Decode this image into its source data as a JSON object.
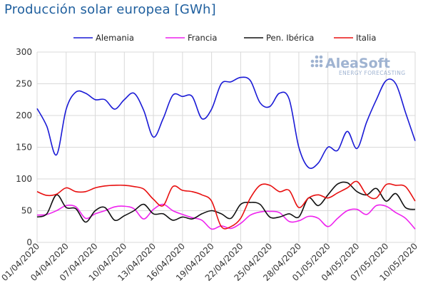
{
  "title": "Producción solar europea [GWh]",
  "watermark": {
    "brand": "AleaSoft",
    "tagline": "ENERGY FORECASTING"
  },
  "colors": {
    "title": "#1f5f9e",
    "grid": "#d9d9d9",
    "watermark": "#9fb3d1"
  },
  "chart_data": {
    "type": "line",
    "title": "Producción solar europea [GWh]",
    "xlabel": "",
    "ylabel": "",
    "ylim": [
      0,
      300
    ],
    "yticks": [
      0,
      50,
      100,
      150,
      200,
      250,
      300
    ],
    "grid": true,
    "legend_position": "top",
    "x": [
      "01/04/2020",
      "02/04/2020",
      "03/04/2020",
      "04/04/2020",
      "05/04/2020",
      "06/04/2020",
      "07/04/2020",
      "08/04/2020",
      "09/04/2020",
      "10/04/2020",
      "11/04/2020",
      "12/04/2020",
      "13/04/2020",
      "14/04/2020",
      "15/04/2020",
      "16/04/2020",
      "17/04/2020",
      "18/04/2020",
      "19/04/2020",
      "20/04/2020",
      "21/04/2020",
      "22/04/2020",
      "23/04/2020",
      "24/04/2020",
      "25/04/2020",
      "26/04/2020",
      "27/04/2020",
      "28/04/2020",
      "29/04/2020",
      "30/04/2020",
      "01/05/2020",
      "02/05/2020",
      "03/05/2020",
      "04/05/2020",
      "05/05/2020",
      "06/05/2020",
      "07/05/2020",
      "08/05/2020",
      "09/05/2020",
      "10/05/2020"
    ],
    "x_tick_labels": [
      "01/04/2020",
      "04/04/2020",
      "07/04/2020",
      "10/04/2020",
      "13/04/2020",
      "16/04/2020",
      "19/04/2020",
      "22/04/2020",
      "25/04/2020",
      "28/04/2020",
      "01/05/2020",
      "04/05/2020",
      "07/05/2020",
      "10/05/2020"
    ],
    "series": [
      {
        "name": "Alemania",
        "color": "#1a1ad6",
        "values": [
          211,
          183,
          138,
          210,
          237,
          235,
          225,
          225,
          210,
          225,
          235,
          208,
          166,
          195,
          232,
          230,
          230,
          195,
          210,
          250,
          253,
          260,
          255,
          220,
          214,
          235,
          226,
          150,
          118,
          125,
          150,
          145,
          175,
          148,
          190,
          225,
          255,
          250,
          205,
          160
        ]
      },
      {
        "name": "Francia",
        "color": "#ee22ee",
        "values": [
          43,
          44,
          50,
          58,
          56,
          38,
          45,
          50,
          56,
          57,
          53,
          37,
          52,
          60,
          50,
          44,
          39,
          35,
          21,
          26,
          22,
          30,
          43,
          48,
          49,
          47,
          33,
          34,
          41,
          38,
          25,
          38,
          50,
          52,
          44,
          58,
          57,
          47,
          38,
          21
        ]
      },
      {
        "name": "Pen. Ibérica",
        "color": "#111111",
        "values": [
          40,
          45,
          75,
          55,
          53,
          32,
          50,
          55,
          35,
          42,
          50,
          60,
          45,
          45,
          35,
          40,
          37,
          45,
          50,
          45,
          38,
          60,
          63,
          60,
          40,
          40,
          45,
          40,
          70,
          58,
          75,
          92,
          94,
          80,
          75,
          85,
          65,
          77,
          55,
          52
        ]
      },
      {
        "name": "Italia",
        "color": "#e81010",
        "values": [
          80,
          74,
          76,
          86,
          80,
          80,
          86,
          89,
          90,
          90,
          88,
          84,
          68,
          58,
          88,
          82,
          80,
          75,
          65,
          25,
          25,
          38,
          70,
          90,
          90,
          80,
          82,
          55,
          70,
          75,
          70,
          78,
          86,
          96,
          75,
          70,
          91,
          90,
          88,
          65
        ]
      }
    ]
  }
}
